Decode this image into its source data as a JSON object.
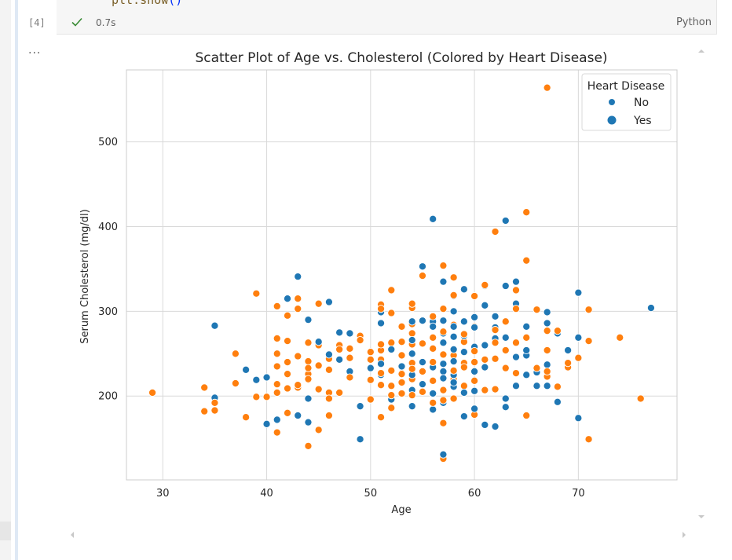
{
  "notebook": {
    "code_line": {
      "text": "plt.show",
      "paren": "()"
    },
    "execution_count": "[4]",
    "status": "✓",
    "duration": "0.7s",
    "language": "Python",
    "output_indicator": "..."
  },
  "colors": {
    "no": "#1f77b4",
    "yes": "#ff7f0e",
    "grid": "#d9d9d9",
    "success": "#388a34"
  },
  "chart_data": {
    "type": "scatter",
    "title": "Scatter Plot of Age vs. Cholesterol (Colored by Heart Disease)",
    "xlabel": "Age",
    "ylabel": "Serum Cholesterol (mg/dl)",
    "xlim": [
      26.5,
      79.5
    ],
    "ylim": [
      101,
      585
    ],
    "xticks": [
      30,
      40,
      50,
      60,
      70
    ],
    "yticks": [
      200,
      300,
      400,
      500
    ],
    "grid": true,
    "legend": {
      "title": "Heart Disease",
      "placement": "upper right",
      "entries": [
        "No",
        "Yes"
      ]
    },
    "series": [
      {
        "name": "No",
        "color": "#1f77b4",
        "points": [
          [
            35,
            283
          ],
          [
            35,
            198
          ],
          [
            38,
            231
          ],
          [
            39,
            219
          ],
          [
            40,
            222
          ],
          [
            40,
            167
          ],
          [
            41,
            172
          ],
          [
            42,
            315
          ],
          [
            43,
            341
          ],
          [
            43,
            247
          ],
          [
            43,
            177
          ],
          [
            44,
            290
          ],
          [
            44,
            197
          ],
          [
            44,
            169
          ],
          [
            45,
            264
          ],
          [
            46,
            311
          ],
          [
            46,
            249
          ],
          [
            46,
            231
          ],
          [
            47,
            275
          ],
          [
            47,
            243
          ],
          [
            48,
            274
          ],
          [
            48,
            229
          ],
          [
            49,
            149
          ],
          [
            49,
            188
          ],
          [
            50,
            233
          ],
          [
            50,
            196
          ],
          [
            51,
            299
          ],
          [
            51,
            286
          ],
          [
            51,
            238
          ],
          [
            51,
            225
          ],
          [
            52,
            255
          ],
          [
            52,
            212
          ],
          [
            52,
            196
          ],
          [
            53,
            282
          ],
          [
            53,
            235
          ],
          [
            53,
            203
          ],
          [
            54,
            288
          ],
          [
            54,
            266
          ],
          [
            54,
            250
          ],
          [
            54,
            225
          ],
          [
            54,
            207
          ],
          [
            54,
            188
          ],
          [
            55,
            353
          ],
          [
            55,
            289
          ],
          [
            55,
            240
          ],
          [
            55,
            214
          ],
          [
            56,
            409
          ],
          [
            56,
            288
          ],
          [
            56,
            282
          ],
          [
            56,
            256
          ],
          [
            56,
            234
          ],
          [
            56,
            203
          ],
          [
            56,
            184
          ],
          [
            57,
            335
          ],
          [
            57,
            289
          ],
          [
            57,
            274
          ],
          [
            57,
            263
          ],
          [
            57,
            238
          ],
          [
            57,
            229
          ],
          [
            57,
            221
          ],
          [
            57,
            192
          ],
          [
            57,
            131
          ],
          [
            58,
            318
          ],
          [
            58,
            300
          ],
          [
            58,
            282
          ],
          [
            58,
            270
          ],
          [
            58,
            255
          ],
          [
            58,
            241
          ],
          [
            58,
            225
          ],
          [
            58,
            216
          ],
          [
            58,
            211
          ],
          [
            59,
            326
          ],
          [
            59,
            288
          ],
          [
            59,
            271
          ],
          [
            59,
            252
          ],
          [
            59,
            239
          ],
          [
            59,
            204
          ],
          [
            59,
            176
          ],
          [
            60,
            293
          ],
          [
            60,
            281
          ],
          [
            60,
            258
          ],
          [
            60,
            229
          ],
          [
            60,
            206
          ],
          [
            60,
            185
          ],
          [
            61,
            330
          ],
          [
            61,
            307
          ],
          [
            61,
            260
          ],
          [
            61,
            243
          ],
          [
            61,
            234
          ],
          [
            61,
            207
          ],
          [
            61,
            166
          ],
          [
            62,
            294
          ],
          [
            62,
            281
          ],
          [
            62,
            268
          ],
          [
            62,
            244
          ],
          [
            62,
            164
          ],
          [
            63,
            407
          ],
          [
            63,
            330
          ],
          [
            63,
            269
          ],
          [
            63,
            197
          ],
          [
            63,
            187
          ],
          [
            64,
            335
          ],
          [
            64,
            309
          ],
          [
            64,
            246
          ],
          [
            64,
            212
          ],
          [
            65,
            282
          ],
          [
            65,
            254
          ],
          [
            65,
            248
          ],
          [
            65,
            225
          ],
          [
            66,
            228
          ],
          [
            66,
            212
          ],
          [
            67,
            299
          ],
          [
            67,
            286
          ],
          [
            67,
            254
          ],
          [
            67,
            237
          ],
          [
            67,
            229
          ],
          [
            67,
            212
          ],
          [
            68,
            274
          ],
          [
            68,
            193
          ],
          [
            69,
            254
          ],
          [
            70,
            322
          ],
          [
            70,
            269
          ],
          [
            70,
            174
          ],
          [
            77,
            304
          ]
        ]
      },
      {
        "name": "Yes",
        "color": "#ff7f0e",
        "points": [
          [
            29,
            204
          ],
          [
            34,
            210
          ],
          [
            34,
            182
          ],
          [
            35,
            192
          ],
          [
            35,
            183
          ],
          [
            37,
            250
          ],
          [
            37,
            215
          ],
          [
            38,
            175
          ],
          [
            39,
            321
          ],
          [
            39,
            199
          ],
          [
            40,
            199
          ],
          [
            41,
            306
          ],
          [
            41,
            268
          ],
          [
            41,
            250
          ],
          [
            41,
            235
          ],
          [
            41,
            214
          ],
          [
            41,
            204
          ],
          [
            41,
            157
          ],
          [
            42,
            295
          ],
          [
            42,
            265
          ],
          [
            42,
            240
          ],
          [
            42,
            226
          ],
          [
            42,
            209
          ],
          [
            42,
            180
          ],
          [
            43,
            315
          ],
          [
            43,
            303
          ],
          [
            43,
            247
          ],
          [
            43,
            213
          ],
          [
            43,
            210
          ],
          [
            44,
            263
          ],
          [
            44,
            241
          ],
          [
            44,
            233
          ],
          [
            44,
            226
          ],
          [
            44,
            219
          ],
          [
            44,
            220
          ],
          [
            44,
            141
          ],
          [
            45,
            309
          ],
          [
            45,
            260
          ],
          [
            45,
            236
          ],
          [
            45,
            208
          ],
          [
            45,
            160
          ],
          [
            46,
            244
          ],
          [
            46,
            231
          ],
          [
            46,
            204
          ],
          [
            46,
            197
          ],
          [
            46,
            177
          ],
          [
            47,
            260
          ],
          [
            47,
            255
          ],
          [
            47,
            204
          ],
          [
            48,
            256
          ],
          [
            48,
            245
          ],
          [
            48,
            222
          ],
          [
            49,
            271
          ],
          [
            49,
            266
          ],
          [
            50,
            252
          ],
          [
            50,
            243
          ],
          [
            50,
            219
          ],
          [
            50,
            196
          ],
          [
            51,
            308
          ],
          [
            51,
            303
          ],
          [
            51,
            261
          ],
          [
            51,
            254
          ],
          [
            51,
            243
          ],
          [
            51,
            227
          ],
          [
            51,
            213
          ],
          [
            51,
            175
          ],
          [
            52,
            325
          ],
          [
            52,
            298
          ],
          [
            52,
            263
          ],
          [
            52,
            230
          ],
          [
            52,
            212
          ],
          [
            52,
            201
          ],
          [
            52,
            186
          ],
          [
            53,
            282
          ],
          [
            53,
            264
          ],
          [
            53,
            248
          ],
          [
            53,
            234
          ],
          [
            53,
            226
          ],
          [
            53,
            216
          ],
          [
            53,
            203
          ],
          [
            54,
            309
          ],
          [
            54,
            304
          ],
          [
            54,
            285
          ],
          [
            54,
            274
          ],
          [
            54,
            261
          ],
          [
            54,
            239
          ],
          [
            54,
            232
          ],
          [
            54,
            220
          ],
          [
            54,
            201
          ],
          [
            55,
            342
          ],
          [
            55,
            262
          ],
          [
            55,
            229
          ],
          [
            55,
            205
          ],
          [
            56,
            294
          ],
          [
            56,
            269
          ],
          [
            56,
            256
          ],
          [
            56,
            240
          ],
          [
            56,
            218
          ],
          [
            56,
            192
          ],
          [
            57,
            354
          ],
          [
            57,
            303
          ],
          [
            57,
            276
          ],
          [
            57,
            249
          ],
          [
            57,
            207
          ],
          [
            57,
            195
          ],
          [
            57,
            168
          ],
          [
            57,
            126
          ],
          [
            58,
            340
          ],
          [
            58,
            319
          ],
          [
            58,
            284
          ],
          [
            58,
            248
          ],
          [
            58,
            230
          ],
          [
            58,
            220
          ],
          [
            58,
            197
          ],
          [
            59,
            273
          ],
          [
            59,
            264
          ],
          [
            59,
            239
          ],
          [
            59,
            234
          ],
          [
            59,
            212
          ],
          [
            60,
            318
          ],
          [
            60,
            282
          ],
          [
            60,
            253
          ],
          [
            60,
            240
          ],
          [
            60,
            218
          ],
          [
            60,
            178
          ],
          [
            61,
            331
          ],
          [
            61,
            243
          ],
          [
            61,
            207
          ],
          [
            62,
            394
          ],
          [
            62,
            278
          ],
          [
            62,
            263
          ],
          [
            62,
            244
          ],
          [
            62,
            208
          ],
          [
            63,
            288
          ],
          [
            63,
            254
          ],
          [
            63,
            233
          ],
          [
            64,
            325
          ],
          [
            64,
            303
          ],
          [
            64,
            263
          ],
          [
            64,
            227
          ],
          [
            65,
            417
          ],
          [
            65,
            360
          ],
          [
            65,
            269
          ],
          [
            65,
            177
          ],
          [
            66,
            302
          ],
          [
            66,
            233
          ],
          [
            67,
            564
          ],
          [
            67,
            277
          ],
          [
            67,
            254
          ],
          [
            67,
            229
          ],
          [
            67,
            223
          ],
          [
            68,
            277
          ],
          [
            68,
            211
          ],
          [
            69,
            239
          ],
          [
            69,
            234
          ],
          [
            70,
            245
          ],
          [
            71,
            302
          ],
          [
            71,
            265
          ],
          [
            71,
            149
          ],
          [
            74,
            269
          ],
          [
            76,
            197
          ]
        ]
      }
    ]
  }
}
